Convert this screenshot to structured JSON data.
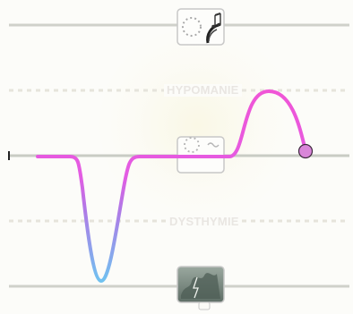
{
  "zones": {
    "upper_label": "HYPOMANIE",
    "lower_label": "DYSTHYMIE"
  },
  "icons": {
    "top": "music-mood-icon",
    "middle": "neutral-mood-icon",
    "bottom": "storm-mood-icon"
  },
  "colors": {
    "curve_top": "#f055d6",
    "curve_bottom": "#6fc3f0",
    "end_marker": "#d986d9",
    "baseline": "#c9ccc4",
    "threshold": "#e6e4dc",
    "icon_border": "#c8c8c8",
    "storm_fill": "#7a8a80"
  }
}
